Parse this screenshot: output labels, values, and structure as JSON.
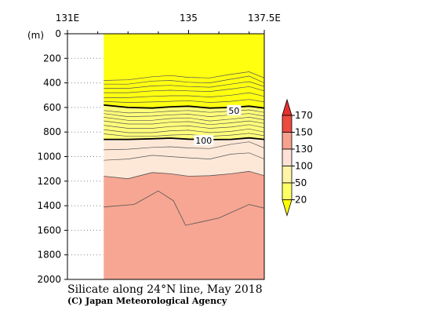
{
  "chart_data": {
    "type": "contour",
    "title": "Silicate along 24°N line, May 2018",
    "credit": "(C) Japan Meteorological Agency",
    "ylabel": "(m)",
    "xlim": [
      131,
      137.5
    ],
    "ylim": [
      0,
      2000
    ],
    "x_ticks": [
      {
        "value": 131,
        "label": "131E"
      },
      {
        "value": 135,
        "label": "135"
      },
      {
        "value": 137.5,
        "label": "137.5E"
      }
    ],
    "y_ticks": [
      {
        "value": 0,
        "label": "0"
      },
      {
        "value": 200,
        "label": "200"
      },
      {
        "value": 400,
        "label": "400"
      },
      {
        "value": 600,
        "label": "600"
      },
      {
        "value": 800,
        "label": "800"
      },
      {
        "value": 1000,
        "label": "1000"
      },
      {
        "value": 1200,
        "label": "1200"
      },
      {
        "value": 1400,
        "label": "1400"
      },
      {
        "value": 1600,
        "label": "1600"
      },
      {
        "value": 1800,
        "label": "1800"
      },
      {
        "value": 2000,
        "label": "2000"
      }
    ],
    "data_start_lon": 132.2,
    "colorbar": {
      "levels": [
        {
          "label": "20",
          "color": "#ffff00"
        },
        {
          "label": "50",
          "color": "#ffff66"
        },
        {
          "label": "100",
          "color": "#fff4a8"
        },
        {
          "label": "130",
          "color": "#fde1d6"
        },
        {
          "label": "150",
          "color": "#f6a28f"
        },
        {
          "label": "170",
          "color": "#ed4a40"
        }
      ],
      "bottom_color": "#ffff00",
      "top_color": "#e63030"
    },
    "bands": [
      {
        "range": "<50",
        "color": "#ffff10"
      },
      {
        "range": "50-100",
        "color": "#ffff7a"
      },
      {
        "range": "100-130",
        "color": "#fde8d8"
      },
      {
        "range": ">130",
        "color": "#f6a692"
      }
    ],
    "contour_labels": [
      {
        "text": "50",
        "lon": 136.5,
        "depth": 625
      },
      {
        "text": "100",
        "lon": 135.5,
        "depth": 870
      }
    ],
    "lon_nodes": [
      132.2,
      133.0,
      133.8,
      134.4,
      135.0,
      135.7,
      136.4,
      137.0,
      137.5
    ],
    "boundaries": [
      {
        "name": "b50",
        "depths": [
          580,
          600,
          605,
          595,
          590,
          605,
          600,
          590,
          605
        ],
        "bold": true
      },
      {
        "name": "b100",
        "depths": [
          860,
          860,
          855,
          850,
          858,
          862,
          860,
          848,
          860
        ],
        "bold": true
      },
      {
        "name": "b130",
        "depths": [
          1160,
          1180,
          1130,
          1140,
          1160,
          1155,
          1140,
          1120,
          1155
        ],
        "bold": false
      }
    ],
    "contours": [
      {
        "depths": [
          380,
          375,
          350,
          340,
          355,
          360,
          330,
          310,
          360
        ]
      },
      {
        "depths": [
          410,
          410,
          385,
          380,
          395,
          400,
          370,
          345,
          400
        ]
      },
      {
        "depths": [
          445,
          445,
          425,
          420,
          430,
          435,
          410,
          390,
          430
        ]
      },
      {
        "depths": [
          480,
          480,
          465,
          460,
          465,
          470,
          450,
          430,
          465
        ]
      },
      {
        "depths": [
          520,
          520,
          510,
          505,
          505,
          515,
          500,
          480,
          510
        ]
      },
      {
        "depths": [
          550,
          560,
          555,
          550,
          545,
          560,
          550,
          535,
          555
        ]
      },
      {
        "depths": [
          625,
          645,
          640,
          630,
          625,
          640,
          630,
          620,
          640
        ]
      },
      {
        "depths": [
          650,
          675,
          670,
          660,
          655,
          675,
          660,
          650,
          670
        ]
      },
      {
        "depths": [
          680,
          705,
          705,
          690,
          685,
          710,
          695,
          680,
          700
        ]
      },
      {
        "depths": [
          710,
          735,
          735,
          720,
          715,
          740,
          725,
          710,
          730
        ]
      },
      {
        "depths": [
          745,
          770,
          770,
          755,
          750,
          770,
          760,
          740,
          765
        ]
      },
      {
        "depths": [
          780,
          805,
          805,
          790,
          785,
          805,
          795,
          775,
          800
        ]
      },
      {
        "depths": [
          815,
          835,
          835,
          825,
          820,
          835,
          825,
          810,
          830
        ]
      },
      {
        "depths": [
          945,
          940,
          925,
          920,
          930,
          935,
          900,
          880,
          930
        ]
      },
      {
        "depths": [
          1030,
          1020,
          990,
          1000,
          1010,
          1020,
          980,
          970,
          1020
        ]
      }
    ],
    "deep_contour": [
      {
        "lon": 132.2,
        "depth": 1410
      },
      {
        "lon": 133.2,
        "depth": 1390
      },
      {
        "lon": 134.0,
        "depth": 1280
      },
      {
        "lon": 134.5,
        "depth": 1360
      },
      {
        "lon": 134.9,
        "depth": 1560
      },
      {
        "lon": 136.0,
        "depth": 1500
      },
      {
        "lon": 137.0,
        "depth": 1390
      },
      {
        "lon": 137.5,
        "depth": 1420
      }
    ]
  }
}
